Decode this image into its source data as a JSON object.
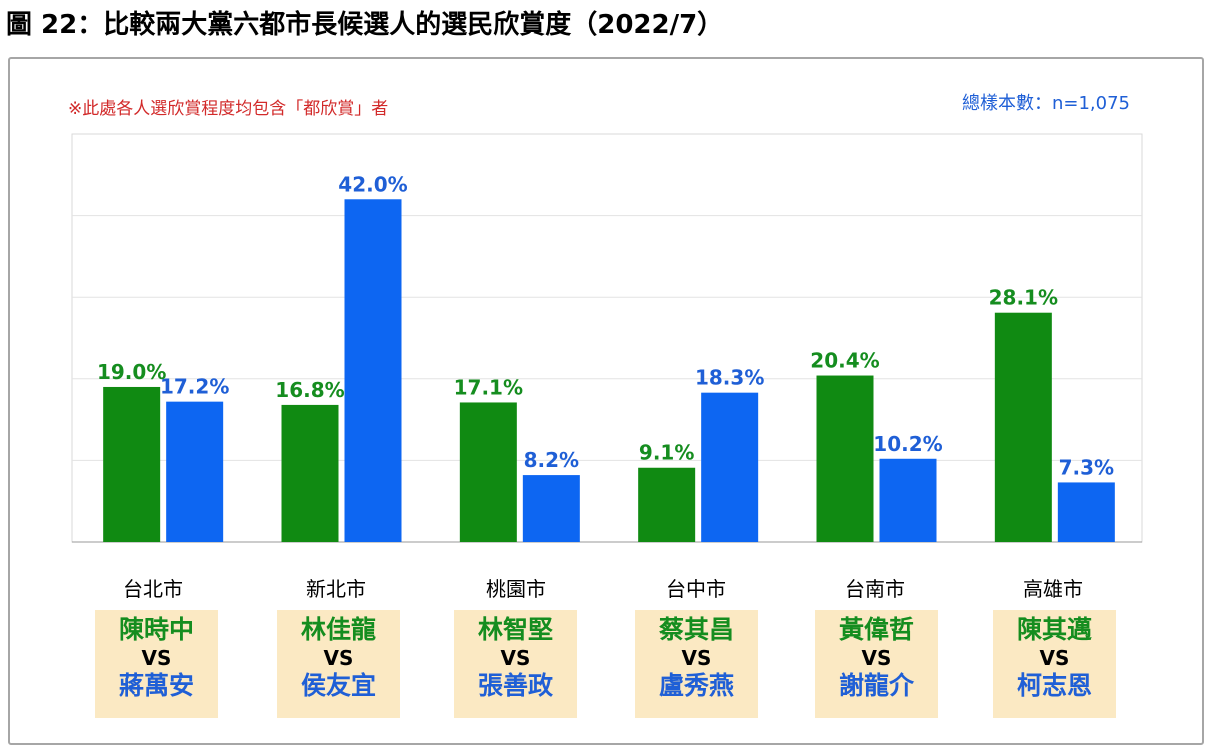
{
  "title": "圖 22：比較兩大黨六都市長候選人的選民欣賞度（2022/7）",
  "note": "※此處各人選欣賞程度均包含「都欣賞」者",
  "sample": "總樣本數：n=1,075",
  "colors": {
    "green": "#108a12",
    "blue": "#0d66f2",
    "green_text": "#158d1f",
    "blue_text": "#1f5fd6"
  },
  "chart_data": {
    "type": "bar",
    "categories": [
      "台北市",
      "新北市",
      "桃園市",
      "台中市",
      "台南市",
      "高雄市"
    ],
    "series": [
      {
        "values": [
          19.0,
          16.8,
          17.1,
          9.1,
          20.4,
          28.1
        ]
      },
      {
        "values": [
          17.2,
          42.0,
          8.2,
          18.3,
          10.2,
          7.3
        ]
      }
    ],
    "data_labels": [
      [
        "19.0%",
        "16.8%",
        "17.1%",
        "9.1%",
        "20.4%",
        "28.1%"
      ],
      [
        "17.2%",
        "42.0%",
        "8.2%",
        "18.3%",
        "10.2%",
        "7.3%"
      ]
    ],
    "ylim": [
      0,
      50
    ],
    "grid": true
  },
  "cities": [
    {
      "name": "台北市",
      "green": "陳時中",
      "vs": "VS",
      "blue": "蔣萬安"
    },
    {
      "name": "新北市",
      "green": "林佳龍",
      "vs": "VS",
      "blue": "侯友宜"
    },
    {
      "name": "桃園市",
      "green": "林智堅",
      "vs": "VS",
      "blue": "張善政"
    },
    {
      "name": "台中市",
      "green": "蔡其昌",
      "vs": "VS",
      "blue": "盧秀燕"
    },
    {
      "name": "台南市",
      "green": "黃偉哲",
      "vs": "VS",
      "blue": "謝龍介"
    },
    {
      "name": "高雄市",
      "green": "陳其邁",
      "vs": "VS",
      "blue": "柯志恩"
    }
  ]
}
